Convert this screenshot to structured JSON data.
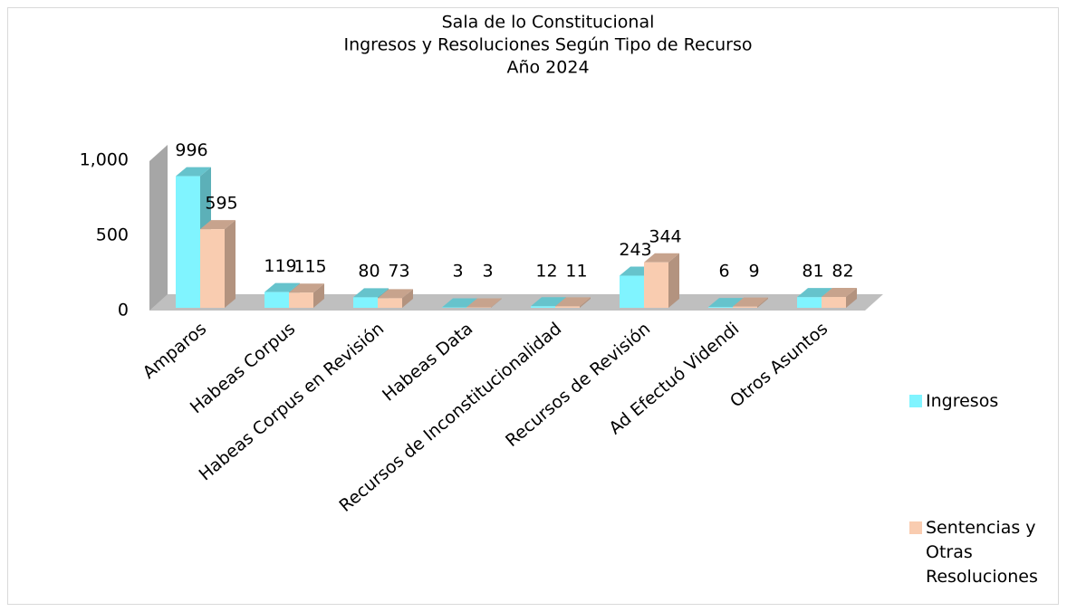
{
  "chart_data": {
    "type": "bar3d",
    "title": [
      "Sala de lo Constitucional",
      "Ingresos y Resoluciones Según Tipo de Recurso",
      "Año 2024"
    ],
    "categories": [
      "Amparos",
      "Habeas Corpus",
      "Habeas Corpus en Revisión",
      "Habeas Data",
      "Recursos de Inconstitucionalidad",
      "Recursos de Revisión",
      "Ad Efectuó Videndi",
      "Otros Asuntos"
    ],
    "series": [
      {
        "name": "Ingresos",
        "color": "#80f4ff",
        "values": [
          996,
          119,
          80,
          3,
          12,
          243,
          6,
          81
        ]
      },
      {
        "name": "Sentencias y Otras Resoluciones",
        "color": "#f9ccb0",
        "values": [
          595,
          115,
          73,
          3,
          11,
          344,
          9,
          82
        ]
      }
    ],
    "ylim": [
      0,
      1000
    ],
    "yticks": [
      0,
      500,
      {
        "value": 1000,
        "label": "1,000"
      }
    ],
    "legend": "right"
  }
}
